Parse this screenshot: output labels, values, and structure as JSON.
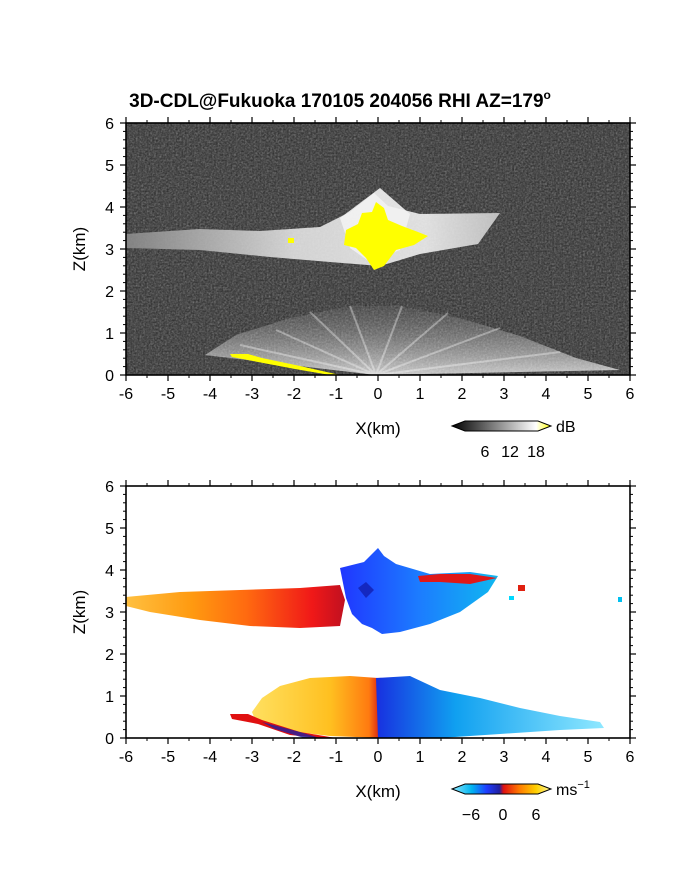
{
  "figure": {
    "title": "3D-CDL@Fukuoka 170105 204056 RHI AZ=179",
    "title_superscript": "o"
  },
  "chart_data": [
    {
      "type": "heatmap",
      "panel": "top",
      "xlabel": "X(km)",
      "ylabel": "Z(km)",
      "xlim": [
        -6,
        6
      ],
      "ylim": [
        0,
        6
      ],
      "x_ticks": [
        "-6",
        "-5",
        "-4",
        "-3",
        "-2",
        "-1",
        "0",
        "1",
        "2",
        "3",
        "4",
        "5",
        "6"
      ],
      "y_ticks": [
        "0",
        "1",
        "2",
        "3",
        "4",
        "5",
        "6"
      ],
      "grid": false,
      "colorbar": {
        "unit": "dB",
        "ticks": [
          "6",
          "12",
          "18"
        ],
        "colors": [
          "#000000",
          "#ffffff",
          "#ffff00"
        ]
      },
      "colors": {
        "background_noise": "#2b2b2b",
        "strong_echo": "#ffff00"
      }
    },
    {
      "type": "heatmap",
      "panel": "bottom",
      "xlabel": "X(km)",
      "ylabel": "Z(km)",
      "xlim": [
        -6,
        6
      ],
      "ylim": [
        0,
        6
      ],
      "x_ticks": [
        "-6",
        "-5",
        "-4",
        "-3",
        "-2",
        "-1",
        "0",
        "1",
        "2",
        "3",
        "4",
        "5",
        "6"
      ],
      "y_ticks": [
        "0",
        "1",
        "2",
        "3",
        "4",
        "5",
        "6"
      ],
      "grid": false,
      "colorbar": {
        "unit": "ms",
        "unit_superscript": "−1",
        "ticks": [
          "−6",
          "0",
          "6"
        ],
        "colors": [
          "#8fe8ff",
          "#00b4f0",
          "#1f3cff",
          "#2020a0",
          "#e01010",
          "#ff7a00",
          "#ffd000",
          "#fff8a0"
        ]
      }
    }
  ]
}
